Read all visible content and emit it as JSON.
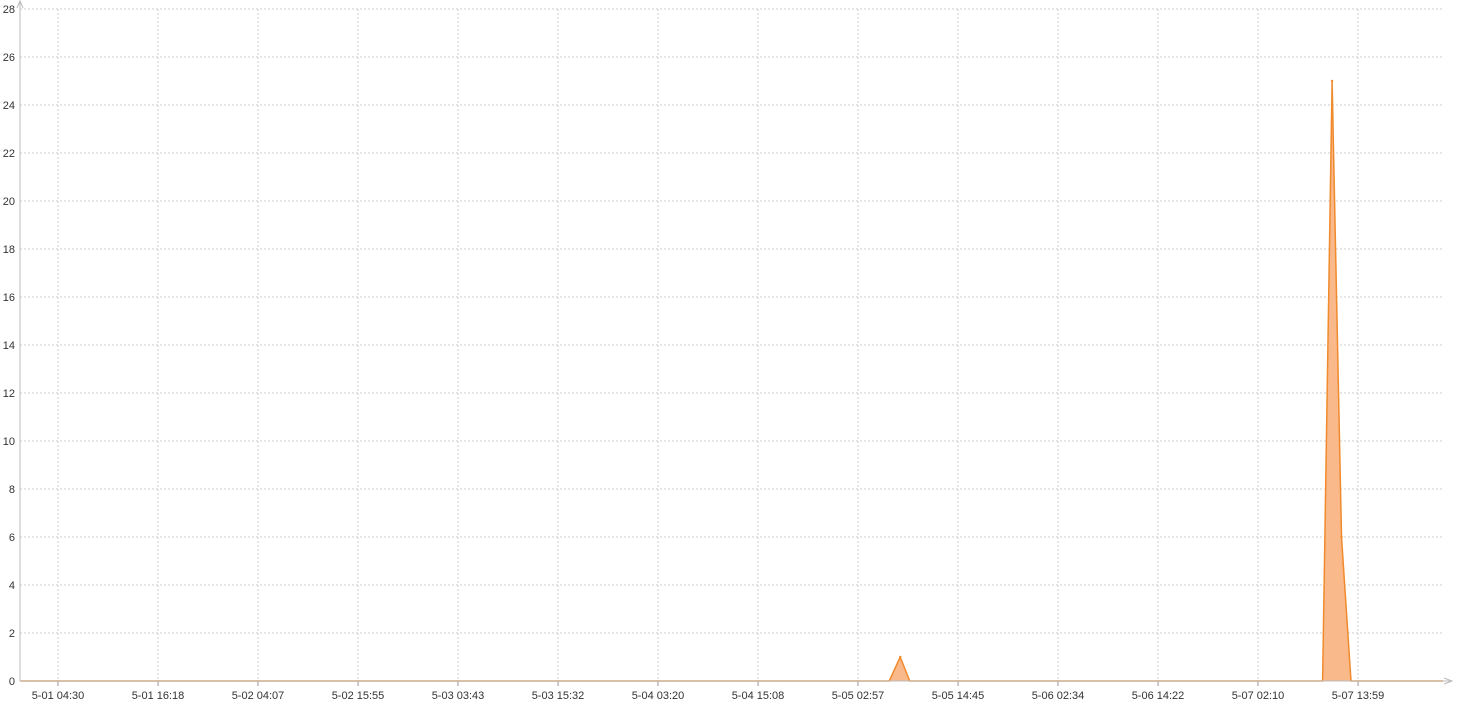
{
  "chart_data": {
    "type": "area",
    "title": "",
    "xlabel": "",
    "ylabel": "",
    "x_tick_labels": [
      "5-01 04:30",
      "5-01 16:18",
      "5-02 04:07",
      "5-02 15:55",
      "5-03 03:43",
      "5-03 15:32",
      "5-04 03:20",
      "5-04 15:08",
      "5-05 02:57",
      "5-05 14:45",
      "5-06 02:34",
      "5-06 14:22",
      "5-07 02:10",
      "5-07 13:59"
    ],
    "y_ticks": [
      0,
      2,
      4,
      6,
      8,
      10,
      12,
      14,
      16,
      18,
      20,
      22,
      24,
      26,
      28
    ],
    "ylim": [
      0,
      28
    ],
    "x_range_minutes": [
      -220,
      8825
    ],
    "series": [
      {
        "color": "#f08a2c",
        "fill": "#f9b98a",
        "points": [
          {
            "t": -220,
            "y": 0
          },
          {
            "t": 5305,
            "y": 0
          },
          {
            "t": 5375,
            "y": 1
          },
          {
            "t": 5435,
            "y": 0
          },
          {
            "t": 8060,
            "y": 0
          },
          {
            "t": 8120,
            "y": 25
          },
          {
            "t": 8180,
            "y": 6
          },
          {
            "t": 8240,
            "y": 0
          },
          {
            "t": 8825,
            "y": 0
          }
        ]
      }
    ],
    "grid": true,
    "grid_style": "dotted",
    "legend": "none"
  }
}
